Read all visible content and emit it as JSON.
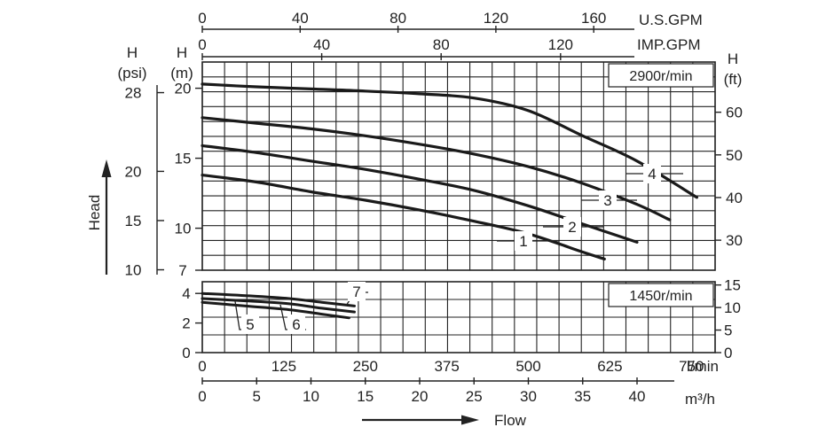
{
  "chart_data": [
    {
      "type": "line",
      "name": "2900 r/min performance",
      "speed_label": "2900r/min",
      "x_unit": "m³/h",
      "y_unit": "m",
      "xlim": [
        0,
        47
      ],
      "ylim": [
        7,
        22
      ],
      "series": [
        {
          "name": "1",
          "x": [
            0,
            5,
            10,
            15,
            20,
            25,
            30,
            35,
            37
          ],
          "y": [
            13.8,
            13.3,
            12.6,
            12.0,
            11.3,
            10.5,
            9.6,
            8.3,
            7.8
          ]
        },
        {
          "name": "2",
          "x": [
            0,
            5,
            10,
            15,
            20,
            25,
            30,
            35,
            40
          ],
          "y": [
            15.9,
            15.4,
            14.8,
            14.2,
            13.5,
            12.7,
            11.6,
            10.3,
            9.0
          ]
        },
        {
          "name": "3",
          "x": [
            0,
            5,
            10,
            15,
            20,
            25,
            30,
            35,
            40,
            43
          ],
          "y": [
            17.9,
            17.5,
            17.1,
            16.6,
            16.0,
            15.3,
            14.4,
            13.2,
            11.7,
            10.6
          ]
        },
        {
          "name": "4",
          "x": [
            0,
            5,
            10,
            15,
            20,
            25,
            30,
            35,
            40,
            45.5
          ],
          "y": [
            20.3,
            20.1,
            19.95,
            19.8,
            19.6,
            19.3,
            18.4,
            16.6,
            14.8,
            12.2
          ]
        }
      ]
    },
    {
      "type": "line",
      "name": "1450 r/min performance",
      "speed_label": "1450r/min",
      "x_unit": "m³/h",
      "y_unit": "m",
      "xlim": [
        0,
        47
      ],
      "ylim": [
        0,
        5
      ],
      "series": [
        {
          "name": "5",
          "x": [
            0,
            4,
            8,
            11,
            13.5
          ],
          "y": [
            3.4,
            3.15,
            2.9,
            2.6,
            2.35
          ]
        },
        {
          "name": "6",
          "x": [
            0,
            4,
            8,
            11,
            14
          ],
          "y": [
            3.65,
            3.5,
            3.3,
            3.0,
            2.75
          ]
        },
        {
          "name": "7",
          "x": [
            0,
            4,
            8,
            11,
            14
          ],
          "y": [
            4.0,
            3.85,
            3.65,
            3.4,
            3.15
          ]
        }
      ]
    }
  ],
  "labels": {
    "top_axis1_unit": "U.S.GPM",
    "top_axis2_unit": "IMP.GPM",
    "left_psi_title": "H",
    "left_psi_unit": "(psi)",
    "left_m_title": "H",
    "left_m_unit": "(m)",
    "right_ft_title": "H",
    "right_ft_unit": "(ft)",
    "bottom_lmin_unit": "l/min",
    "bottom_m3h_unit": "m³/h",
    "head_label": "Head",
    "flow_label": "Flow"
  },
  "axes": {
    "us_gpm_ticks": [
      "0",
      "40",
      "80",
      "120",
      "160"
    ],
    "imp_gpm_ticks": [
      "0",
      "40",
      "80",
      "120"
    ],
    "upper_m_ticks": [
      "20",
      "15",
      "10",
      "7"
    ],
    "psi_ticks": [
      "28",
      "20",
      "15",
      "10"
    ],
    "ft_upper_ticks": [
      "60",
      "50",
      "40",
      "30"
    ],
    "lower_m_ticks": [
      "4",
      "2",
      "0"
    ],
    "ft_lower_ticks": [
      "15",
      "10",
      "5",
      "0"
    ],
    "lmin_ticks": [
      "0",
      "125",
      "250",
      "375",
      "500",
      "625",
      "750"
    ],
    "m3h_ticks": [
      "0",
      "5",
      "10",
      "15",
      "20",
      "25",
      "30",
      "35",
      "40"
    ]
  },
  "colors": {
    "curve": "#1a1a1a",
    "grid": "#222222",
    "text": "#222222"
  }
}
